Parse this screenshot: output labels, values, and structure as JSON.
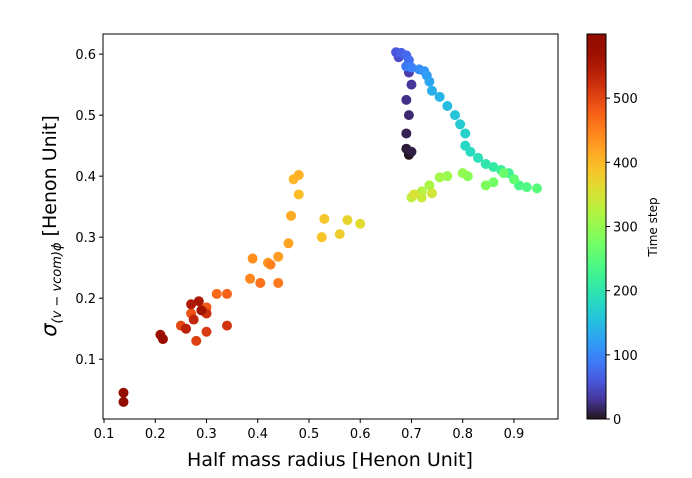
{
  "chart_data": {
    "type": "scatter",
    "xlabel": "Half mass radius [Henon Unit]",
    "ylabel_symbol": "σ",
    "ylabel_subscript": "(v − vcom)ϕ",
    "ylabel_unit": "[Henon Unit]",
    "colorbar_label": "Time step",
    "colormap": "turbo",
    "xlim": [
      0.098,
      0.986
    ],
    "ylim": [
      0.002,
      0.633
    ],
    "clim": [
      0,
      600
    ],
    "xticks": [
      0.1,
      0.2,
      0.3,
      0.4,
      0.5,
      0.6,
      0.7,
      0.8,
      0.9
    ],
    "yticks": [
      0.1,
      0.2,
      0.3,
      0.4,
      0.5,
      0.6
    ],
    "cticks": [
      0,
      100,
      200,
      300,
      400,
      500
    ],
    "x": [
      0.695,
      0.69,
      0.7,
      0.69,
      0.695,
      0.69,
      0.7,
      0.695,
      0.69,
      0.675,
      0.67,
      0.68,
      0.69,
      0.695,
      0.69,
      0.7,
      0.715,
      0.725,
      0.73,
      0.735,
      0.74,
      0.755,
      0.77,
      0.785,
      0.795,
      0.805,
      0.805,
      0.815,
      0.83,
      0.845,
      0.86,
      0.875,
      0.89,
      0.9,
      0.91,
      0.925,
      0.945,
      0.9,
      0.88,
      0.86,
      0.845,
      0.81,
      0.8,
      0.77,
      0.755,
      0.735,
      0.72,
      0.7,
      0.72,
      0.74,
      0.705,
      0.6,
      0.575,
      0.56,
      0.53,
      0.525,
      0.48,
      0.47,
      0.48,
      0.465,
      0.46,
      0.44,
      0.42,
      0.39,
      0.385,
      0.425,
      0.44,
      0.405,
      0.32,
      0.34,
      0.3,
      0.27,
      0.25,
      0.28,
      0.3,
      0.34,
      0.3,
      0.275,
      0.26,
      0.27,
      0.285,
      0.29,
      0.21,
      0.215,
      0.138,
      0.138
    ],
    "y": [
      0.435,
      0.445,
      0.44,
      0.47,
      0.5,
      0.525,
      0.55,
      0.57,
      0.58,
      0.595,
      0.603,
      0.602,
      0.598,
      0.59,
      0.58,
      0.578,
      0.575,
      0.572,
      0.565,
      0.555,
      0.54,
      0.53,
      0.515,
      0.5,
      0.485,
      0.47,
      0.45,
      0.44,
      0.43,
      0.42,
      0.415,
      0.41,
      0.405,
      0.395,
      0.385,
      0.382,
      0.38,
      0.395,
      0.405,
      0.39,
      0.385,
      0.4,
      0.405,
      0.4,
      0.398,
      0.385,
      0.375,
      0.365,
      0.365,
      0.372,
      0.37,
      0.322,
      0.328,
      0.305,
      0.33,
      0.3,
      0.37,
      0.395,
      0.402,
      0.335,
      0.29,
      0.268,
      0.258,
      0.265,
      0.232,
      0.255,
      0.225,
      0.225,
      0.207,
      0.207,
      0.185,
      0.175,
      0.155,
      0.13,
      0.145,
      0.155,
      0.175,
      0.165,
      0.15,
      0.19,
      0.195,
      0.18,
      0.14,
      0.133,
      0.045,
      0.03
    ],
    "c": [
      0,
      5,
      8,
      12,
      18,
      25,
      30,
      36,
      42,
      50,
      58,
      65,
      72,
      80,
      88,
      95,
      105,
      112,
      120,
      128,
      135,
      142,
      150,
      158,
      165,
      172,
      178,
      185,
      192,
      200,
      208,
      215,
      222,
      228,
      235,
      242,
      250,
      258,
      265,
      272,
      280,
      288,
      295,
      302,
      308,
      315,
      322,
      330,
      338,
      345,
      352,
      362,
      370,
      376,
      383,
      388,
      395,
      402,
      408,
      413,
      418,
      425,
      432,
      438,
      444,
      450,
      456,
      462,
      470,
      476,
      482,
      490,
      498,
      505,
      510,
      518,
      525,
      532,
      540,
      548,
      555,
      560,
      568,
      576,
      585,
      592
    ]
  }
}
